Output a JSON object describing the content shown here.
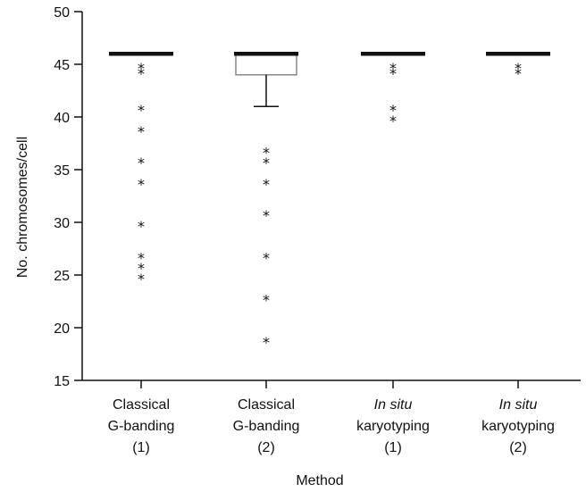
{
  "chart_data": {
    "type": "boxplot",
    "title": "",
    "xlabel": "Method",
    "ylabel": "No. chromosomes/cell",
    "ylim": [
      15,
      50
    ],
    "yticks": [
      15,
      20,
      25,
      30,
      35,
      40,
      45,
      50
    ],
    "ytick_labels": [
      "15",
      "20",
      "25",
      "30",
      "35",
      "40",
      "45",
      "50"
    ],
    "grid": false,
    "outlier_marker": "*",
    "categories": [
      {
        "lines": [
          {
            "text": "Classical",
            "italic": false
          },
          {
            "text": "G-banding",
            "italic": false
          },
          {
            "text": "(1)",
            "italic": false
          }
        ]
      },
      {
        "lines": [
          {
            "text": "Classical",
            "italic": false
          },
          {
            "text": "G-banding",
            "italic": false
          },
          {
            "text": "(2)",
            "italic": false
          }
        ]
      },
      {
        "lines": [
          {
            "text": "In situ",
            "italic": true
          },
          {
            "text": "karyotyping",
            "italic": false
          },
          {
            "text": "(1)",
            "italic": false
          }
        ]
      },
      {
        "lines": [
          {
            "text": "In situ",
            "italic": true
          },
          {
            "text": "karyotyping",
            "italic": false
          },
          {
            "text": "(2)",
            "italic": false
          }
        ]
      }
    ],
    "boxes": [
      {
        "q1": 46,
        "median": 46,
        "q3": 46,
        "whisker_low": 46,
        "whisker_high": 46,
        "outliers": [
          45,
          44.5,
          41,
          39,
          36,
          34,
          30,
          27,
          26,
          25
        ]
      },
      {
        "q1": 44,
        "median": 46,
        "q3": 46,
        "whisker_low": 41,
        "whisker_high": 46,
        "outliers": [
          37,
          36,
          34,
          31,
          27,
          23,
          19
        ]
      },
      {
        "q1": 46,
        "median": 46,
        "q3": 46,
        "whisker_low": 46,
        "whisker_high": 46,
        "outliers": [
          45,
          44.5,
          41,
          40
        ]
      },
      {
        "q1": 46,
        "median": 46,
        "q3": 46,
        "whisker_low": 46,
        "whisker_high": 46,
        "outliers": [
          45,
          44.5
        ]
      }
    ]
  }
}
